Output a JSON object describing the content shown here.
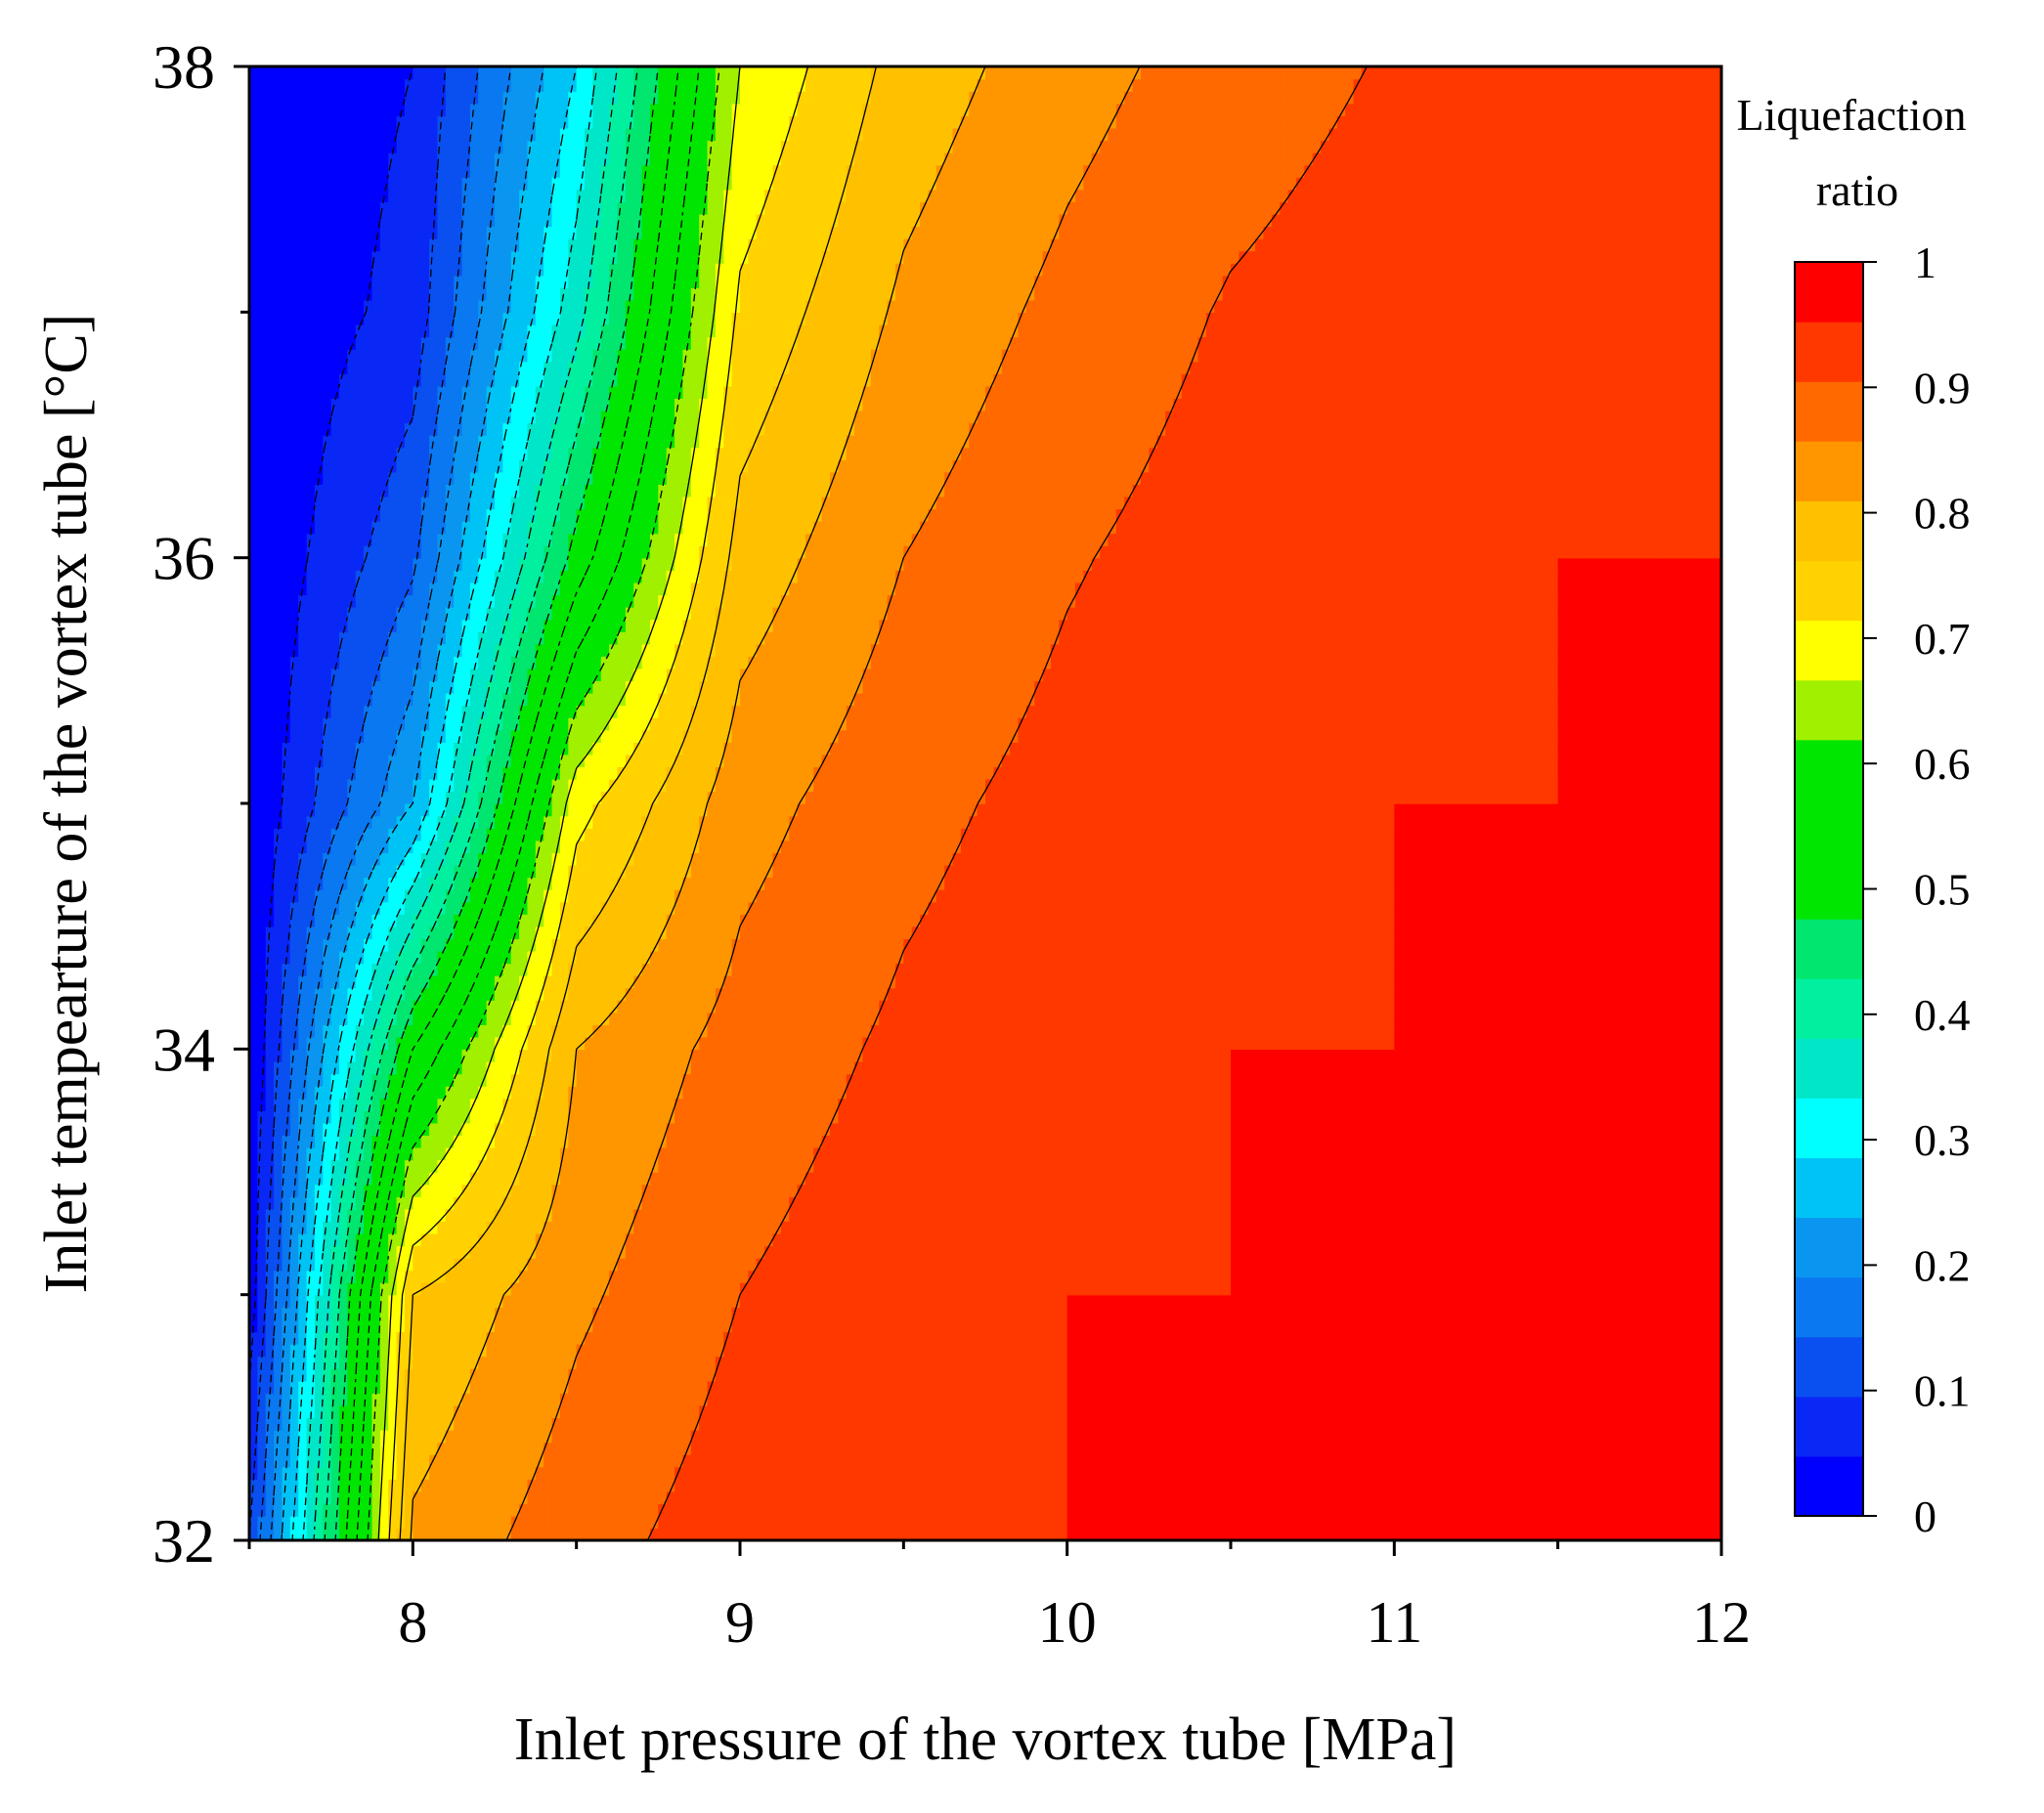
{
  "chart_data": {
    "type": "contour",
    "x": [
      7.5,
      8,
      8.5,
      9,
      9.5,
      10,
      10.5,
      11,
      11.5,
      12
    ],
    "y": [
      32,
      33,
      34,
      35,
      36,
      37,
      38
    ],
    "z": [
      [
        0.1,
        0.86,
        0.93,
        0.976,
        1.0,
        1.0,
        1.0,
        1.0,
        1.0,
        1.0
      ],
      [
        0.02,
        0.8,
        0.89,
        0.95,
        0.982,
        1.0,
        1.0,
        1.0,
        1.0,
        1.0
      ],
      [
        0.0,
        0.55,
        0.85,
        0.92,
        0.96,
        0.985,
        1.0,
        1.0,
        1.0,
        1.0
      ],
      [
        0.0,
        0.25,
        0.73,
        0.88,
        0.935,
        0.968,
        0.99,
        1.0,
        1.0,
        1.0
      ],
      [
        0.0,
        0.14,
        0.52,
        0.82,
        0.9,
        0.945,
        0.975,
        0.99,
        1.0,
        1.0
      ],
      [
        0.0,
        0.07,
        0.38,
        0.76,
        0.86,
        0.915,
        0.955,
        0.977,
        0.99,
        1.0
      ],
      [
        0.0,
        0.05,
        0.3,
        0.7,
        0.82,
        0.88,
        0.925,
        0.955,
        0.975,
        0.99
      ]
    ],
    "xlim": [
      7.5,
      12
    ],
    "ylim": [
      32,
      38
    ],
    "x_major_ticks": [
      8,
      9,
      10,
      11,
      12
    ],
    "x_tick_labels": [
      "8",
      "9",
      "10",
      "11",
      "12"
    ],
    "y_major_ticks": [
      32,
      34,
      36,
      38
    ],
    "y_tick_labels": [
      "32",
      "34",
      "36",
      "38"
    ],
    "xlabel": "Inlet pressure of the vortex tube [MPa]",
    "ylabel": "Inlet tempearture of the vortex tube [°C]",
    "colorbar": {
      "title_line1": "Liquefaction",
      "title_line2": "ratio",
      "range": [
        0,
        1
      ],
      "levels": [
        0,
        0.05,
        0.1,
        0.15,
        0.2,
        0.25,
        0.3,
        0.35,
        0.4,
        0.45,
        0.5,
        0.55,
        0.6,
        0.65,
        0.7,
        0.75,
        0.8,
        0.85,
        0.9,
        0.95,
        1
      ],
      "colors": [
        "#0000ff",
        "#0a28f5",
        "#0a50f0",
        "#0a78f0",
        "#0a96f0",
        "#00c3f5",
        "#00ffff",
        "#00e6c8",
        "#00f0a0",
        "#00e66e",
        "#00e600",
        "#00e600",
        "#00e600",
        "#a0f000",
        "#ffff00",
        "#ffd200",
        "#ffc000",
        "#ff9600",
        "#ff6900",
        "#ff3800",
        "#ff0000"
      ],
      "ticks": [
        0,
        0.1,
        0.2,
        0.3,
        0.4,
        0.5,
        0.6,
        0.7,
        0.8,
        0.9,
        1
      ],
      "tick_labels": [
        "0",
        "0.1",
        "0.2",
        "0.3",
        "0.4",
        "0.5",
        "0.6",
        "0.7",
        "0.8",
        "0.9",
        "1"
      ]
    },
    "dashed_below": 0.7
  }
}
